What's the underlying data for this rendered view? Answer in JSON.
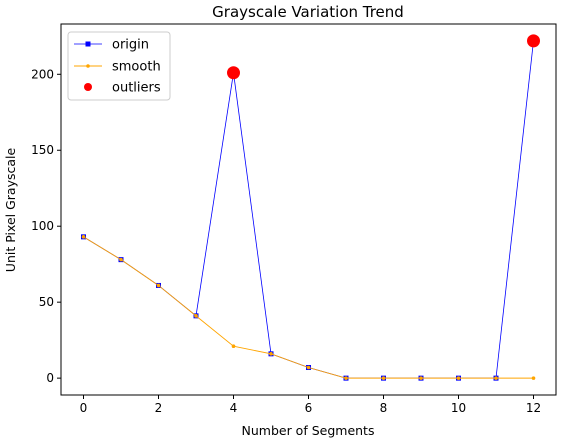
{
  "chart_data": {
    "type": "line",
    "title": "Grayscale Variation Trend",
    "xlabel": "Number of Segments",
    "ylabel": "Unit Pixel Grayscale",
    "xlim": [
      -0.6,
      12.6
    ],
    "ylim": [
      -11.1,
      233.1
    ],
    "x_ticks": [
      0,
      2,
      4,
      6,
      8,
      10,
      12
    ],
    "y_ticks": [
      0,
      50,
      100,
      150,
      200
    ],
    "grid": false,
    "legend_position": "top-left",
    "x": [
      0,
      1,
      2,
      3,
      4,
      5,
      6,
      7,
      8,
      9,
      10,
      11,
      12
    ],
    "series": [
      {
        "name": "origin",
        "color": "#0000ff",
        "marker": "square",
        "values": [
          93,
          78,
          61,
          41,
          201,
          16,
          7,
          0,
          0,
          0,
          0,
          0,
          222
        ]
      },
      {
        "name": "smooth",
        "color": "#ffa500",
        "marker": "dot",
        "values": [
          93,
          78,
          61,
          41,
          21,
          16,
          7,
          0,
          0,
          0,
          0,
          0,
          0
        ]
      },
      {
        "name": "outliers",
        "color": "#ff0000",
        "marker": "circle",
        "type": "scatter",
        "points": [
          {
            "x": 4,
            "y": 201
          },
          {
            "x": 12,
            "y": 222
          }
        ]
      }
    ]
  }
}
